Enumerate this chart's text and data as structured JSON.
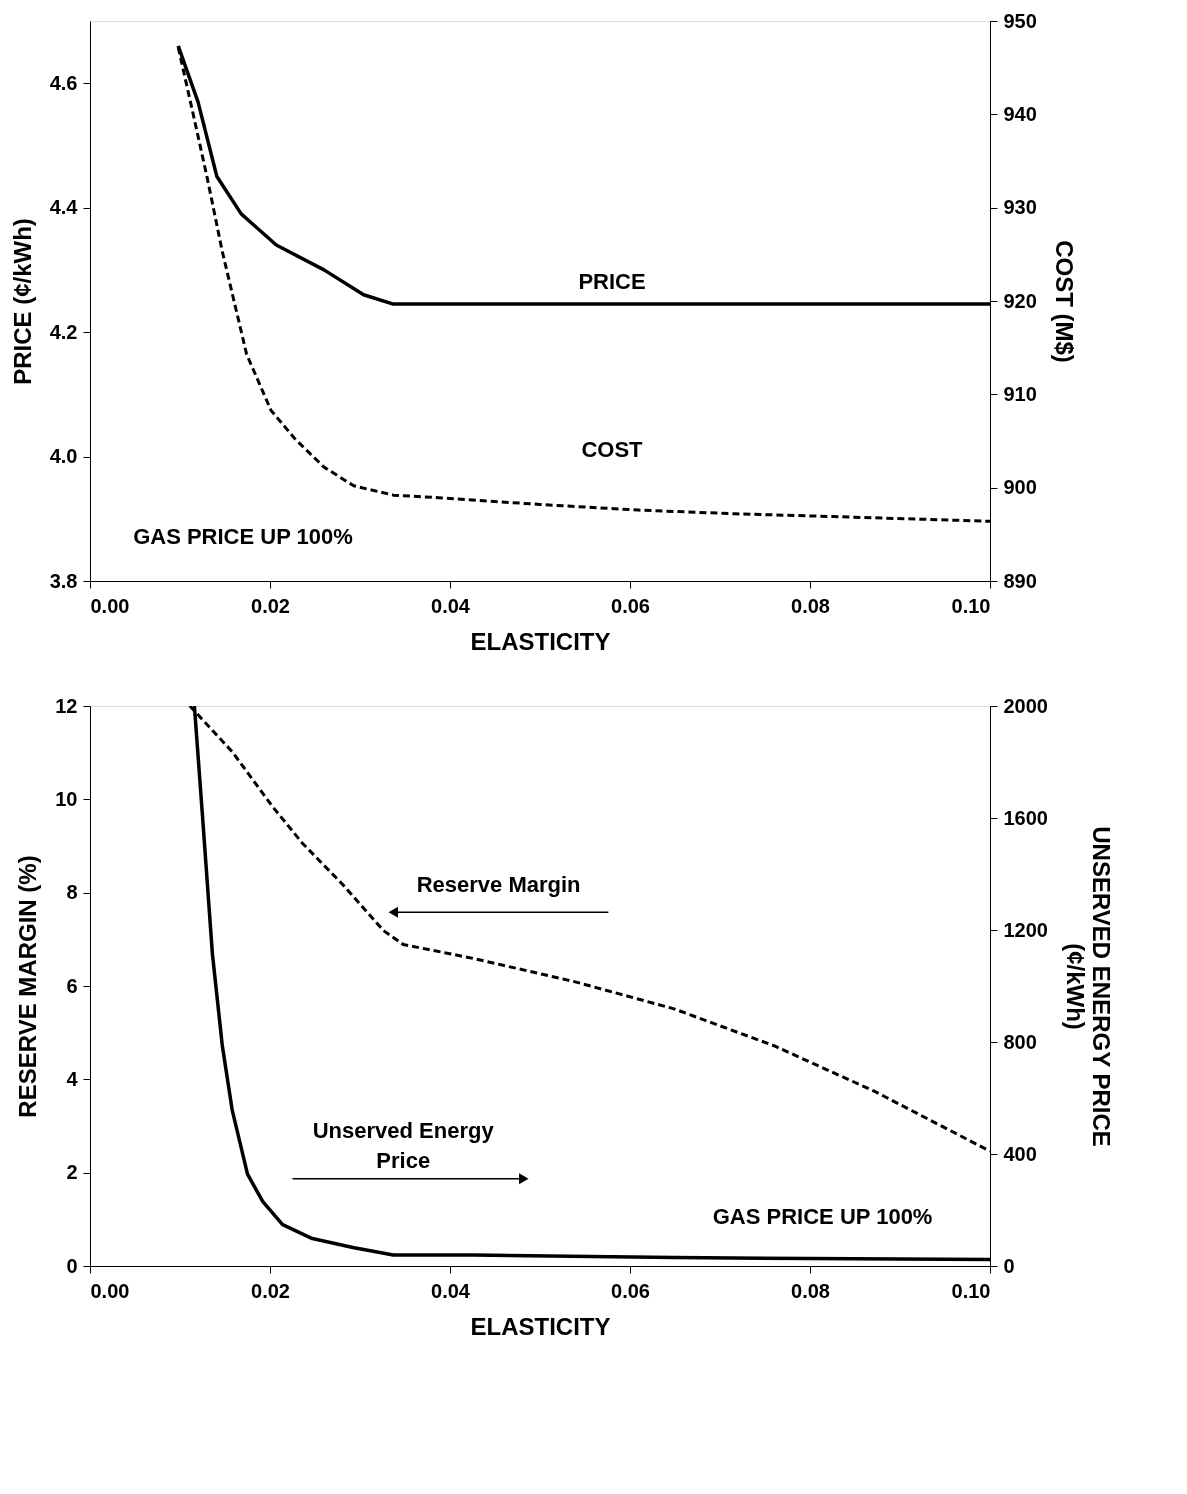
{
  "chart_data": [
    {
      "type": "line",
      "xlabel": "ELASTICITY",
      "ylabel": "PRICE (¢/kWh)",
      "y2label": "COST (M$)",
      "xlim": [
        0,
        0.1
      ],
      "xticks": [
        {
          "value": 0,
          "label": "0.00"
        },
        {
          "value": 0.02,
          "label": "0.02"
        },
        {
          "value": 0.04,
          "label": "0.04"
        },
        {
          "value": 0.06,
          "label": "0.06"
        },
        {
          "value": 0.08,
          "label": "0.08"
        },
        {
          "value": 0.1,
          "label": "0.10"
        }
      ],
      "ylim": [
        3.8,
        4.7
      ],
      "yticks": [
        3.8,
        {
          "value": 4,
          "label": "4.0"
        },
        4.2,
        4.4,
        4.6
      ],
      "y2lim": [
        890,
        950
      ],
      "y2ticks": [
        890,
        900,
        910,
        920,
        930,
        940,
        950
      ],
      "series": [
        {
          "color": "#000000",
          "line_style": "solid",
          "x": [
            0.0098,
            0.012,
            0.0141,
            0.0168,
            0.0207,
            0.026,
            0.0304,
            0.0337,
            0.05,
            0.07,
            0.1
          ],
          "values": [
            4.66,
            4.57,
            4.45,
            4.39,
            4.34,
            4.3,
            4.26,
            4.245,
            4.245,
            4.245,
            4.245
          ]
        },
        {
          "color": "#000000",
          "line_style": "dashed",
          "axis": "y2",
          "x": [
            0.0098,
            0.0114,
            0.013,
            0.0147,
            0.0174,
            0.0201,
            0.0228,
            0.026,
            0.0293,
            0.0337,
            0.0391,
            0.05,
            0.0609,
            0.0717,
            0.0826,
            0.1
          ],
          "values": [
            947.2,
            940.3,
            933.3,
            925.3,
            914.3,
            908.3,
            905.2,
            902.2,
            900.2,
            899.2,
            898.9,
            898.2,
            897.6,
            897.2,
            896.9,
            896.4
          ]
        }
      ],
      "annotations": [
        "PRICE",
        "COST",
        "GAS PRICE UP 100%"
      ]
    },
    {
      "type": "line",
      "xlabel": "ELASTICITY",
      "ylabel": "RESERVE MARGIN (%)",
      "y2label": "UNSERVED ENERGY PRICE\n(¢/kWh)",
      "xlim": [
        0,
        0.1
      ],
      "xticks": [
        {
          "value": 0,
          "label": "0.00"
        },
        {
          "value": 0.02,
          "label": "0.02"
        },
        {
          "value": 0.04,
          "label": "0.04"
        },
        {
          "value": 0.06,
          "label": "0.06"
        },
        {
          "value": 0.08,
          "label": "0.08"
        },
        {
          "value": 0.1,
          "label": "0.10"
        }
      ],
      "ylim": [
        0,
        12
      ],
      "yticks": [
        0,
        2,
        4,
        6,
        8,
        10,
        12
      ],
      "y2lim": [
        0,
        2000
      ],
      "y2ticks": [
        0,
        400,
        800,
        1200,
        1600,
        2000
      ],
      "series": [
        {
          "color": "#000000",
          "line_style": "dashed",
          "x": [
            0.0111,
            0.0158,
            0.0203,
            0.0236,
            0.0281,
            0.0326,
            0.0348,
            0.0426,
            0.0537,
            0.0649,
            0.076,
            0.0872,
            0.1
          ],
          "values": [
            12.0,
            11.02,
            9.84,
            9.06,
            8.17,
            7.19,
            6.89,
            6.59,
            6.1,
            5.51,
            4.72,
            3.74,
            2.46
          ]
        },
        {
          "color": "#000000",
          "line_style": "solid",
          "axis": "y2",
          "x": [
            0.0116,
            0.0125,
            0.0136,
            0.0147,
            0.0158,
            0.0175,
            0.0192,
            0.0214,
            0.0247,
            0.0292,
            0.0337,
            0.0426,
            0.0649,
            0.1
          ],
          "values": [
            2000,
            1607,
            1115,
            787,
            557,
            328,
            230,
            148,
            98,
            66,
            39,
            39,
            30,
            23
          ]
        }
      ],
      "annotations": [
        "Reserve Margin",
        "Unserved Energy\nPrice",
        "GAS PRICE UP 100%"
      ]
    }
  ]
}
